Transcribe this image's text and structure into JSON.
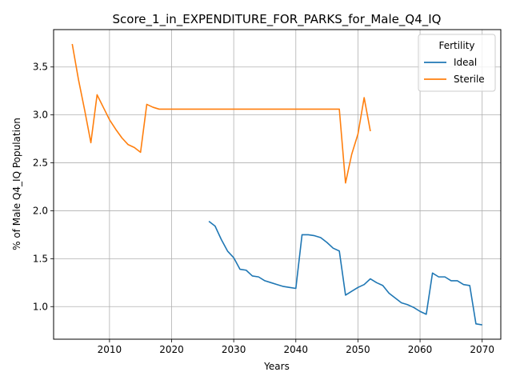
{
  "chart_data": {
    "type": "line",
    "title": "Score_1_in_EXPENDITURE_FOR_PARKS_for_Male_Q4_IQ",
    "xlabel": "Years",
    "ylabel": "% of Male Q4_IQ Population",
    "xlim": [
      2001,
      2073
    ],
    "ylim": [
      0.66,
      3.89
    ],
    "xticks": [
      2010,
      2020,
      2030,
      2040,
      2050,
      2060,
      2070
    ],
    "yticks": [
      1.0,
      1.5,
      2.0,
      2.5,
      3.0,
      3.5
    ],
    "ytick_labels": [
      "1.0",
      "1.5",
      "2.0",
      "2.5",
      "3.0",
      "3.5"
    ],
    "grid": true,
    "legend": {
      "title": "Fertility",
      "position": "top-right"
    },
    "series": [
      {
        "name": "Ideal",
        "color": "#1f77b4",
        "points": [
          [
            2026,
            1.89
          ],
          [
            2027,
            1.84
          ],
          [
            2028,
            1.7
          ],
          [
            2029,
            1.58
          ],
          [
            2030,
            1.51
          ],
          [
            2031,
            1.39
          ],
          [
            2032,
            1.38
          ],
          [
            2033,
            1.32
          ],
          [
            2034,
            1.31
          ],
          [
            2035,
            1.27
          ],
          [
            2036,
            1.25
          ],
          [
            2037,
            1.23
          ],
          [
            2038,
            1.21
          ],
          [
            2039,
            1.2
          ],
          [
            2040,
            1.19
          ],
          [
            2041,
            1.75
          ],
          [
            2042,
            1.75
          ],
          [
            2043,
            1.74
          ],
          [
            2044,
            1.72
          ],
          [
            2045,
            1.67
          ],
          [
            2046,
            1.61
          ],
          [
            2047,
            1.58
          ],
          [
            2048,
            1.12
          ],
          [
            2049,
            1.16
          ],
          [
            2050,
            1.2
          ],
          [
            2051,
            1.23
          ],
          [
            2052,
            1.29
          ],
          [
            2053,
            1.25
          ],
          [
            2054,
            1.22
          ],
          [
            2055,
            1.14
          ],
          [
            2056,
            1.09
          ],
          [
            2057,
            1.04
          ],
          [
            2058,
            1.02
          ],
          [
            2059,
            0.99
          ],
          [
            2060,
            0.95
          ],
          [
            2061,
            0.92
          ],
          [
            2062,
            1.35
          ],
          [
            2063,
            1.31
          ],
          [
            2064,
            1.31
          ],
          [
            2065,
            1.27
          ],
          [
            2066,
            1.27
          ],
          [
            2067,
            1.23
          ],
          [
            2068,
            1.22
          ],
          [
            2069,
            0.82
          ],
          [
            2070,
            0.81
          ]
        ]
      },
      {
        "name": "Sterile",
        "color": "#ff7f0e",
        "points": [
          [
            2004,
            3.74
          ],
          [
            2005,
            3.37
          ],
          [
            2006,
            3.05
          ],
          [
            2007,
            2.71
          ],
          [
            2008,
            3.21
          ],
          [
            2009,
            3.08
          ],
          [
            2010,
            2.95
          ],
          [
            2011,
            2.85
          ],
          [
            2012,
            2.76
          ],
          [
            2013,
            2.69
          ],
          [
            2014,
            2.66
          ],
          [
            2015,
            2.61
          ],
          [
            2016,
            3.11
          ],
          [
            2017,
            3.08
          ],
          [
            2018,
            3.06
          ],
          [
            2019,
            3.06
          ],
          [
            2020,
            3.06
          ],
          [
            2025,
            3.06
          ],
          [
            2030,
            3.06
          ],
          [
            2035,
            3.06
          ],
          [
            2040,
            3.06
          ],
          [
            2045,
            3.06
          ],
          [
            2047,
            3.06
          ],
          [
            2048,
            2.29
          ],
          [
            2049,
            2.59
          ],
          [
            2050,
            2.8
          ],
          [
            2051,
            3.18
          ],
          [
            2052,
            2.83
          ]
        ]
      }
    ]
  }
}
